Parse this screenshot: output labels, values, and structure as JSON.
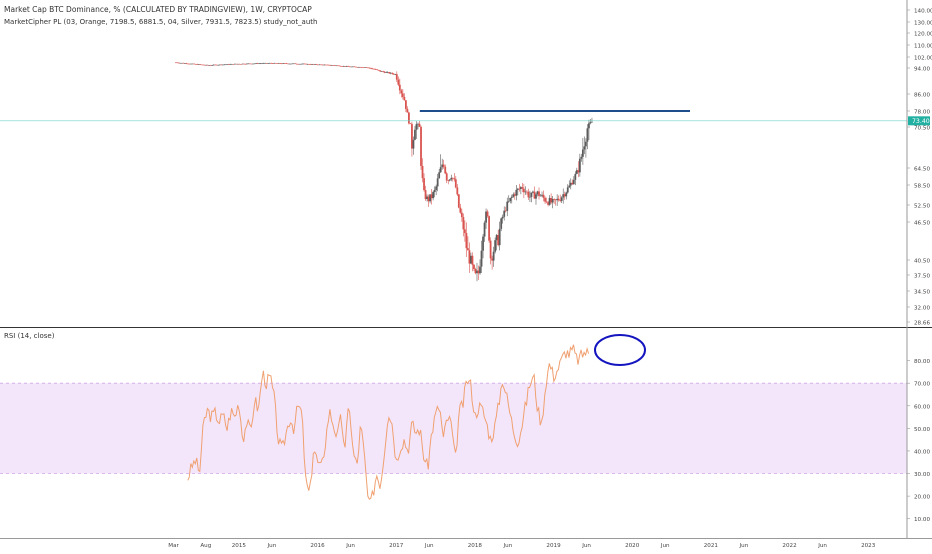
{
  "header": {
    "title": "Market Cap BTC Dominance, % (CALCULATED BY TRADINGVIEW), 1W, CRYPTOCAP",
    "study": "MarketCipher PL (03, Orange, 7198.5, 6881.5, 04, Silver, 7931.5, 7823.5) study_not_auth"
  },
  "rsi_panel": {
    "label": "RSI (14, close)"
  },
  "colors": {
    "up": "#5b5b5b",
    "down": "#d9534f",
    "rsi": "#f0a070",
    "rsi_band": "#f3e6fb",
    "hline": "#1f4e8c",
    "cyan": "#6fd6c9",
    "annot": "#1515c0",
    "badge": "#22b0a2"
  },
  "chart_data": [
    {
      "type": "line",
      "series_style": "candlestick",
      "ylim": [
        28.66,
        143
      ],
      "y_ticks": [
        "140.00",
        "130.00",
        "120.00",
        "110.00",
        "102.00",
        "94.00",
        "86.00",
        "78.00",
        "70.50",
        "64.50",
        "58.50",
        "52.50",
        "46.50",
        "40.50",
        "37.50",
        "34.50",
        "32.00",
        "28.66"
      ],
      "current_value_label": "73.40",
      "horizontal_line": 78.0,
      "horizontal_line_cyan": 73.4,
      "series": [
        {
          "x": [
            2014.2,
            2014.6,
            2015.0,
            2015.4,
            2015.8,
            2016.2,
            2016.4,
            2016.6,
            2016.8,
            2017.0,
            2017.1,
            2017.15,
            2017.2,
            2017.25,
            2017.3,
            2017.35,
            2017.4,
            2017.45,
            2017.5,
            2017.55,
            2017.6,
            2017.65,
            2017.7,
            2017.75,
            2017.8,
            2017.85,
            2017.9,
            2017.95,
            2018.0,
            2018.05,
            2018.1,
            2018.15,
            2018.2,
            2018.3,
            2018.4,
            2018.5,
            2018.6,
            2018.7,
            2018.8,
            2018.9,
            2019.0,
            2019.1,
            2019.2,
            2019.3,
            2019.4,
            2019.5
          ],
          "values": [
            98,
            96,
            97,
            97.5,
            97,
            96,
            95,
            94.5,
            93,
            92,
            84,
            75,
            68,
            72,
            70,
            56,
            54,
            55,
            57,
            63,
            66,
            60,
            62,
            59,
            51,
            46,
            42,
            40,
            37,
            38,
            45,
            50,
            41,
            44,
            52,
            56,
            58,
            55,
            56,
            54,
            53,
            55,
            58,
            63,
            69,
            73.4
          ]
        }
      ]
    },
    {
      "type": "line",
      "title": "RSI (14, close)",
      "ylim": [
        5,
        90
      ],
      "y_ticks": [
        "80.00",
        "70.00",
        "60.00",
        "50.00",
        "40.00",
        "30.00",
        "20.00",
        "10.00"
      ],
      "band": [
        30,
        70
      ],
      "x_tick_labels": [
        "Mar",
        "Aug",
        "2015",
        "Jun",
        "2016",
        "Jun",
        "2017",
        "Jun",
        "2018",
        "Jun",
        "2019",
        "Jun",
        "2020",
        "Jun",
        "2021",
        "Jun",
        "2022",
        "Jun",
        "2023"
      ],
      "series": [
        {
          "x": [
            2014.35,
            2014.4,
            2014.45,
            2014.5,
            2014.55,
            2014.6,
            2014.65,
            2014.7,
            2014.75,
            2014.8,
            2014.85,
            2014.9,
            2014.95,
            2015.0,
            2015.05,
            2015.1,
            2015.15,
            2015.2,
            2015.25,
            2015.3,
            2015.35,
            2015.4,
            2015.45,
            2015.5,
            2015.55,
            2015.6,
            2015.65,
            2015.7,
            2015.75,
            2015.8,
            2015.85,
            2015.9,
            2015.95,
            2016.0,
            2016.05,
            2016.1,
            2016.15,
            2016.2,
            2016.25,
            2016.3,
            2016.35,
            2016.4,
            2016.45,
            2016.5,
            2016.55,
            2016.6,
            2016.65,
            2016.7,
            2016.75,
            2016.8,
            2016.85,
            2016.9,
            2016.95,
            2017.0,
            2017.05,
            2017.1,
            2017.15,
            2017.2,
            2017.25,
            2017.3,
            2017.35,
            2017.4,
            2017.45,
            2017.5,
            2017.55,
            2017.6,
            2017.65,
            2017.7,
            2017.75,
            2017.8,
            2017.85,
            2017.9,
            2017.95,
            2018.0,
            2018.05,
            2018.1,
            2018.15,
            2018.2,
            2018.25,
            2018.3,
            2018.35,
            2018.4,
            2018.45,
            2018.5,
            2018.55,
            2018.6,
            2018.65,
            2018.7,
            2018.75,
            2018.8,
            2018.85,
            2018.9,
            2018.95,
            2019.0,
            2019.05,
            2019.1,
            2019.15,
            2019.2,
            2019.25,
            2019.3,
            2019.35,
            2019.4,
            2019.45
          ],
          "values": [
            28,
            33,
            36,
            30,
            52,
            58,
            55,
            57,
            53,
            56,
            50,
            58,
            55,
            62,
            45,
            53,
            48,
            63,
            58,
            75,
            70,
            73,
            63,
            45,
            40,
            48,
            55,
            50,
            60,
            57,
            27,
            20,
            42,
            35,
            32,
            44,
            58,
            52,
            46,
            55,
            40,
            63,
            40,
            33,
            52,
            36,
            15,
            20,
            30,
            25,
            40,
            58,
            52,
            35,
            42,
            45,
            40,
            52,
            48,
            50,
            38,
            32,
            48,
            56,
            60,
            45,
            55,
            52,
            35,
            57,
            61,
            72,
            69,
            55,
            60,
            58,
            52,
            45,
            50,
            60,
            72,
            65,
            56,
            48,
            44,
            52,
            61,
            70,
            73,
            58,
            52,
            70,
            79,
            73,
            76,
            80,
            84,
            83,
            85,
            80,
            82,
            84,
            83
          ]
        }
      ]
    }
  ]
}
